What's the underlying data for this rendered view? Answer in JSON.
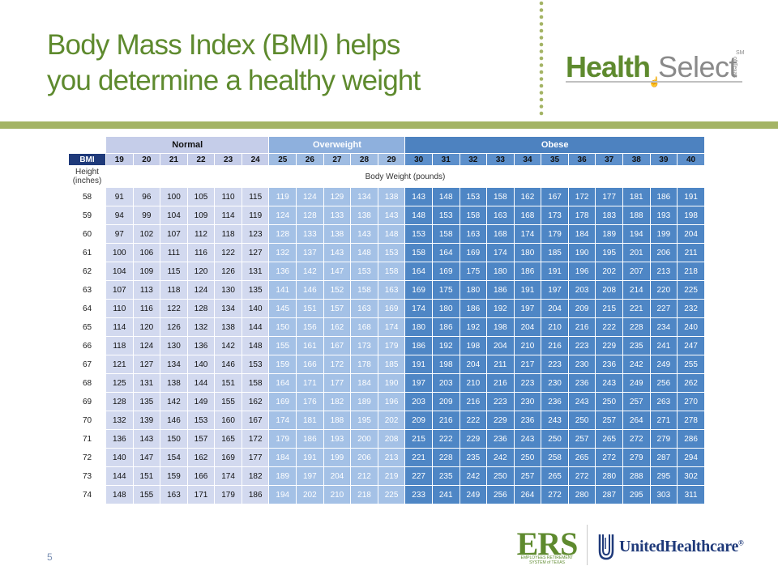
{
  "title": {
    "line1": "Body Mass Index (BMI) helps",
    "line2": "you determine a healthy weight"
  },
  "logo_healthselect": {
    "word1": "Health",
    "word2": "Select",
    "mark": "SM",
    "subtext": "of Texas",
    "color_primary": "#5e8a2e",
    "color_secondary": "#8a8a8a"
  },
  "table": {
    "categories": [
      {
        "label": "Normal",
        "span": 6,
        "style": "normal"
      },
      {
        "label": "Overweight",
        "span": 5,
        "style": "over"
      },
      {
        "label": "Obese",
        "span": 11,
        "style": "obese"
      }
    ],
    "bmi_label": "BMI",
    "bmi_values": [
      19,
      20,
      21,
      22,
      23,
      24,
      25,
      26,
      27,
      28,
      29,
      30,
      31,
      32,
      33,
      34,
      35,
      36,
      37,
      38,
      39,
      40
    ],
    "height_label_1": "Height",
    "height_label_2": "(inches)",
    "weight_label": "Body Weight (pounds)",
    "rows": [
      {
        "height": 58,
        "weights": [
          91,
          96,
          100,
          105,
          110,
          115,
          119,
          124,
          129,
          134,
          138,
          143,
          148,
          153,
          158,
          162,
          167,
          172,
          177,
          181,
          186,
          191
        ]
      },
      {
        "height": 59,
        "weights": [
          94,
          99,
          104,
          109,
          114,
          119,
          124,
          128,
          133,
          138,
          143,
          148,
          153,
          158,
          163,
          168,
          173,
          178,
          183,
          188,
          193,
          198
        ]
      },
      {
        "height": 60,
        "weights": [
          97,
          102,
          107,
          112,
          118,
          123,
          128,
          133,
          138,
          143,
          148,
          153,
          158,
          163,
          168,
          174,
          179,
          184,
          189,
          194,
          199,
          204
        ]
      },
      {
        "height": 61,
        "weights": [
          100,
          106,
          111,
          116,
          122,
          127,
          132,
          137,
          143,
          148,
          153,
          158,
          164,
          169,
          174,
          180,
          185,
          190,
          195,
          201,
          206,
          211
        ]
      },
      {
        "height": 62,
        "weights": [
          104,
          109,
          115,
          120,
          126,
          131,
          136,
          142,
          147,
          153,
          158,
          164,
          169,
          175,
          180,
          186,
          191,
          196,
          202,
          207,
          213,
          218
        ]
      },
      {
        "height": 63,
        "weights": [
          107,
          113,
          118,
          124,
          130,
          135,
          141,
          146,
          152,
          158,
          163,
          169,
          175,
          180,
          186,
          191,
          197,
          203,
          208,
          214,
          220,
          225
        ]
      },
      {
        "height": 64,
        "weights": [
          110,
          116,
          122,
          128,
          134,
          140,
          145,
          151,
          157,
          163,
          169,
          174,
          180,
          186,
          192,
          197,
          204,
          209,
          215,
          221,
          227,
          232
        ]
      },
      {
        "height": 65,
        "weights": [
          114,
          120,
          126,
          132,
          138,
          144,
          150,
          156,
          162,
          168,
          174,
          180,
          186,
          192,
          198,
          204,
          210,
          216,
          222,
          228,
          234,
          240
        ]
      },
      {
        "height": 66,
        "weights": [
          118,
          124,
          130,
          136,
          142,
          148,
          155,
          161,
          167,
          173,
          179,
          186,
          192,
          198,
          204,
          210,
          216,
          223,
          229,
          235,
          241,
          247
        ]
      },
      {
        "height": 67,
        "weights": [
          121,
          127,
          134,
          140,
          146,
          153,
          159,
          166,
          172,
          178,
          185,
          191,
          198,
          204,
          211,
          217,
          223,
          230,
          236,
          242,
          249,
          255
        ]
      },
      {
        "height": 68,
        "weights": [
          125,
          131,
          138,
          144,
          151,
          158,
          164,
          171,
          177,
          184,
          190,
          197,
          203,
          210,
          216,
          223,
          230,
          236,
          243,
          249,
          256,
          262
        ]
      },
      {
        "height": 69,
        "weights": [
          128,
          135,
          142,
          149,
          155,
          162,
          169,
          176,
          182,
          189,
          196,
          203,
          209,
          216,
          223,
          230,
          236,
          243,
          250,
          257,
          263,
          270
        ]
      },
      {
        "height": 70,
        "weights": [
          132,
          139,
          146,
          153,
          160,
          167,
          174,
          181,
          188,
          195,
          202,
          209,
          216,
          222,
          229,
          236,
          243,
          250,
          257,
          264,
          271,
          278
        ]
      },
      {
        "height": 71,
        "weights": [
          136,
          143,
          150,
          157,
          165,
          172,
          179,
          186,
          193,
          200,
          208,
          215,
          222,
          229,
          236,
          243,
          250,
          257,
          265,
          272,
          279,
          286
        ]
      },
      {
        "height": 72,
        "weights": [
          140,
          147,
          154,
          162,
          169,
          177,
          184,
          191,
          199,
          206,
          213,
          221,
          228,
          235,
          242,
          250,
          258,
          265,
          272,
          279,
          287,
          294
        ]
      },
      {
        "height": 73,
        "weights": [
          144,
          151,
          159,
          166,
          174,
          182,
          189,
          197,
          204,
          212,
          219,
          227,
          235,
          242,
          250,
          257,
          265,
          272,
          280,
          288,
          295,
          302
        ]
      },
      {
        "height": 74,
        "weights": [
          148,
          155,
          163,
          171,
          179,
          186,
          194,
          202,
          210,
          218,
          225,
          233,
          241,
          249,
          256,
          264,
          272,
          280,
          287,
          295,
          303,
          311
        ]
      }
    ]
  },
  "page_number": "5",
  "logo_ers": {
    "text": "ERS",
    "subtext_line1": "EMPLOYEES RETIREMENT",
    "subtext_line2": "SYSTEM of TEXAS"
  },
  "logo_uhc": {
    "text": "UnitedHealthcare",
    "mark": "®"
  },
  "colors": {
    "title_green": "#5e8a2e",
    "band_green": "#a4b465",
    "normal_fill": "#d2d9ef",
    "overweight_fill": "#a4c1e6",
    "obese_fill": "#4e86c5",
    "bmi_label_fill": "#1f3a7a"
  }
}
